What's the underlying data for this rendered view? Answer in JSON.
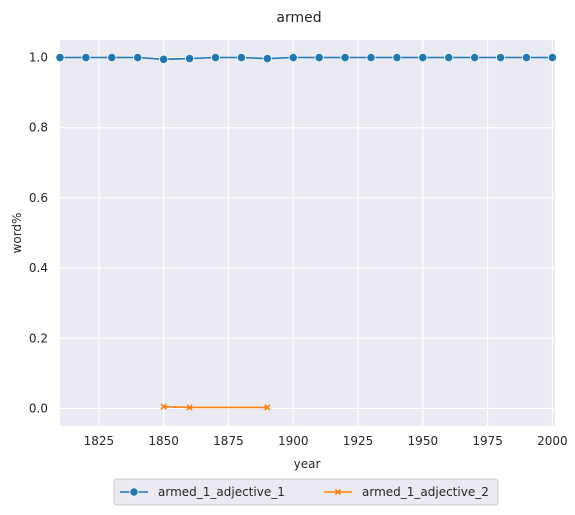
{
  "chart_data": {
    "type": "line",
    "title": "armed",
    "xlabel": "year",
    "ylabel": "word%",
    "xlim": [
      1810,
      2001
    ],
    "ylim": [
      -0.05,
      1.05
    ],
    "xticks": [
      1825,
      1850,
      1875,
      1900,
      1925,
      1950,
      1975,
      2000
    ],
    "yticks": [
      0.0,
      0.2,
      0.4,
      0.6,
      0.8,
      1.0
    ],
    "xtick_labels": [
      "1825",
      "1850",
      "1875",
      "1900",
      "1925",
      "1950",
      "1975",
      "2000"
    ],
    "ytick_labels": [
      "0.0",
      "0.2",
      "0.4",
      "0.6",
      "0.8",
      "1.0"
    ],
    "grid": true,
    "legend_position": "bottom-center",
    "series": [
      {
        "name": "armed_1_adjective_1",
        "color": "#1f77b4",
        "marker": "circle",
        "x": [
          1810,
          1820,
          1830,
          1840,
          1850,
          1860,
          1870,
          1880,
          1890,
          1900,
          1910,
          1920,
          1930,
          1940,
          1950,
          1960,
          1970,
          1980,
          1990,
          2000
        ],
        "y": [
          1.0,
          1.0,
          1.0,
          1.0,
          0.995,
          0.997,
          1.0,
          1.0,
          0.997,
          1.0,
          1.0,
          1.0,
          1.0,
          1.0,
          1.0,
          1.0,
          1.0,
          1.0,
          1.0,
          1.0
        ]
      },
      {
        "name": "armed_1_adjective_2",
        "color": "#ff7f0e",
        "marker": "x",
        "x": [
          1850,
          1860,
          1890
        ],
        "y": [
          0.005,
          0.003,
          0.003
        ]
      }
    ]
  }
}
